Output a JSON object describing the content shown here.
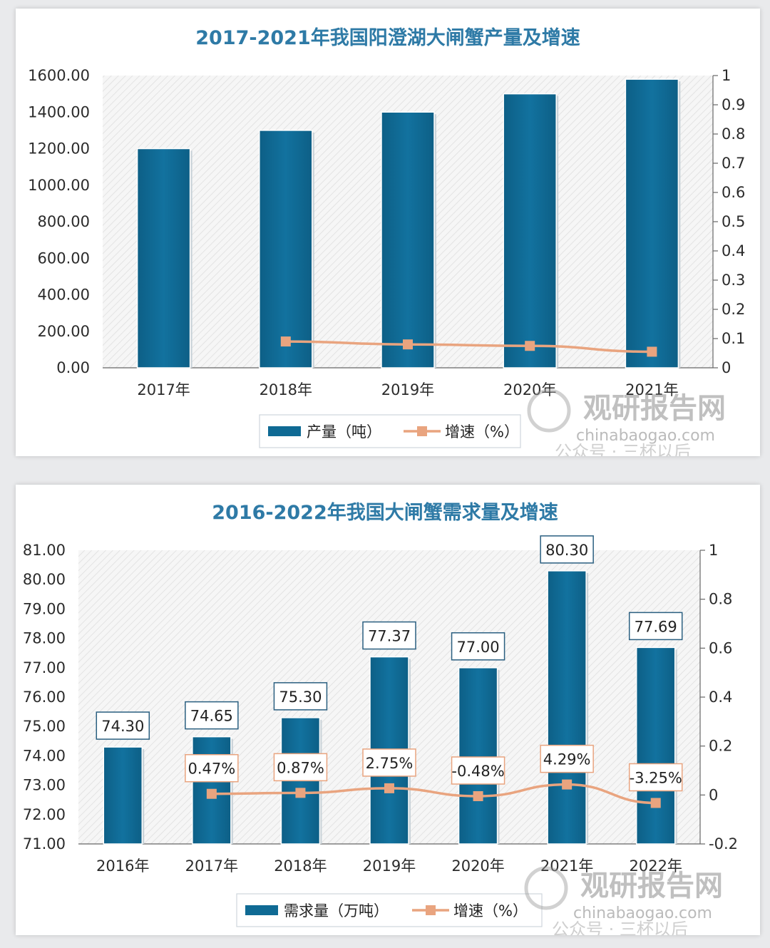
{
  "watermark": {
    "brand": "观研报告网",
    "url": "chinabaogao.com",
    "account": "公众号 · 三杯以后"
  },
  "chart_data": [
    {
      "type": "bar",
      "title": "2017-2021年我国阳澄湖大闸蟹产量及增速",
      "categories": [
        "2017年",
        "2018年",
        "2019年",
        "2020年",
        "2021年"
      ],
      "series": [
        {
          "name": "产量（吨）",
          "type": "bar",
          "axis": "left",
          "color": "#0f6a94",
          "values": [
            1200,
            1300,
            1400,
            1500,
            1580
          ]
        },
        {
          "name": "增速（%）",
          "type": "line",
          "axis": "right",
          "color": "#e9a47f",
          "values": [
            null,
            0.09,
            0.08,
            0.075,
            0.055
          ]
        }
      ],
      "y_left": {
        "min": 0,
        "max": 1600,
        "ticks": [
          "0.00",
          "200.00",
          "400.00",
          "600.00",
          "800.00",
          "1000.00",
          "1200.00",
          "1400.00",
          "1600.00"
        ]
      },
      "y_right": {
        "min": 0,
        "max": 1,
        "ticks": [
          "0",
          "0.1",
          "0.2",
          "0.3",
          "0.4",
          "0.5",
          "0.6",
          "0.7",
          "0.8",
          "0.9",
          "1"
        ]
      },
      "data_labels": false,
      "legend": "bottom-center"
    },
    {
      "type": "bar",
      "title": "2016-2022年我国大闸蟹需求量及增速",
      "categories": [
        "2016年",
        "2017年",
        "2018年",
        "2019年",
        "2020年",
        "2021年",
        "2022年"
      ],
      "series": [
        {
          "name": "需求量（万吨）",
          "type": "bar",
          "axis": "left",
          "color": "#0f6a94",
          "values": [
            74.3,
            74.65,
            75.3,
            77.37,
            77.0,
            80.3,
            77.69
          ],
          "labels": [
            "74.30",
            "74.65",
            "75.30",
            "77.37",
            "77.00",
            "80.30",
            "77.69"
          ]
        },
        {
          "name": "增速（%）",
          "type": "line",
          "axis": "right",
          "color": "#e9a47f",
          "values": [
            null,
            0.0047,
            0.0087,
            0.0275,
            -0.0048,
            0.0429,
            -0.0325
          ],
          "labels": [
            null,
            "0.47%",
            "0.87%",
            "2.75%",
            "-0.48%",
            "4.29%",
            "-3.25%"
          ]
        }
      ],
      "y_left": {
        "min": 71,
        "max": 81,
        "ticks": [
          "71.00",
          "72.00",
          "73.00",
          "74.00",
          "75.00",
          "76.00",
          "77.00",
          "78.00",
          "79.00",
          "80.00",
          "81.00"
        ]
      },
      "y_right": {
        "min": -0.2,
        "max": 1,
        "ticks": [
          "-0.2",
          "0",
          "0.2",
          "0.4",
          "0.6",
          "0.8",
          "1"
        ]
      },
      "data_labels": true,
      "legend": "bottom-center"
    }
  ]
}
